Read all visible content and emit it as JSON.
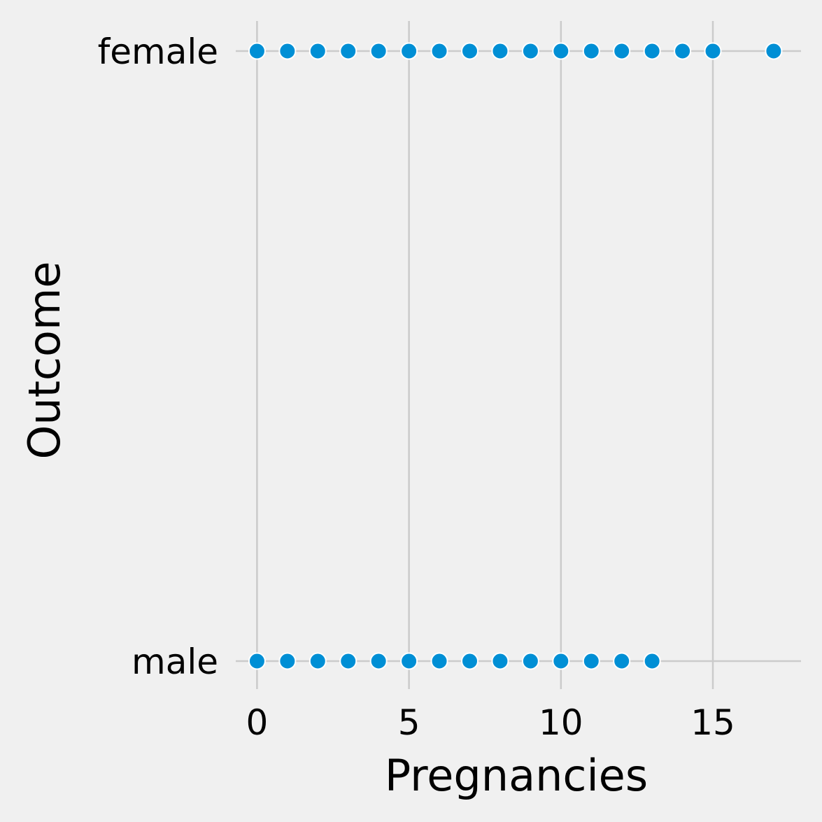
{
  "chart_data": {
    "type": "scatter",
    "xlabel": "Pregnancies",
    "ylabel": "Outcome",
    "xlim": [
      -0.7,
      17.9
    ],
    "x_ticks": [
      0,
      5,
      10,
      15
    ],
    "y_categories": [
      "female",
      "male"
    ],
    "grid": true,
    "marker_color": "#008fd5",
    "background_color": "#f0f0f0",
    "grid_color": "#cbcbcb",
    "series": [
      {
        "category": "female",
        "x": [
          0,
          1,
          2,
          3,
          4,
          5,
          6,
          7,
          8,
          9,
          10,
          11,
          12,
          13,
          14,
          15,
          17
        ]
      },
      {
        "category": "male",
        "x": [
          0,
          1,
          2,
          3,
          4,
          5,
          6,
          7,
          8,
          9,
          10,
          11,
          12,
          13
        ]
      }
    ]
  }
}
